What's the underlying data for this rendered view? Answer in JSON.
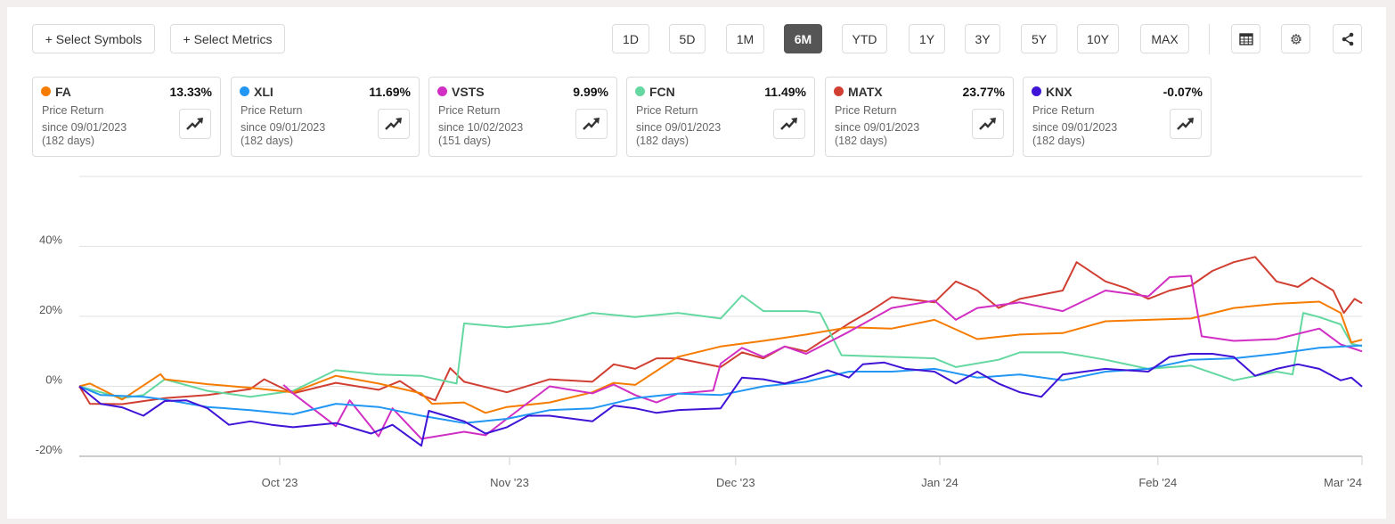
{
  "toolbar": {
    "select_symbols": "+ Select Symbols",
    "select_metrics": "+ Select Metrics",
    "ranges": [
      "1D",
      "5D",
      "1M",
      "6M",
      "YTD",
      "1Y",
      "3Y",
      "5Y",
      "10Y",
      "MAX"
    ],
    "active_range": "6M",
    "icons": [
      "table-icon",
      "gear-icon",
      "share-icon"
    ]
  },
  "cards": [
    {
      "symbol": "FA",
      "value": "13.33%",
      "metric": "Price Return",
      "since": "since 09/01/2023",
      "days": "(182 days)",
      "color": "#f57c00"
    },
    {
      "symbol": "XLI",
      "value": "11.69%",
      "metric": "Price Return",
      "since": "since 09/01/2023",
      "days": "(182 days)",
      "color": "#2196f3"
    },
    {
      "symbol": "VSTS",
      "value": "9.99%",
      "metric": "Price Return",
      "since": "since 10/02/2023",
      "days": "(151 days)",
      "color": "#d12fc4"
    },
    {
      "symbol": "FCN",
      "value": "11.49%",
      "metric": "Price Return",
      "since": "since 09/01/2023",
      "days": "(182 days)",
      "color": "#64d8a0"
    },
    {
      "symbol": "MATX",
      "value": "23.77%",
      "metric": "Price Return",
      "since": "since 09/01/2023",
      "days": "(182 days)",
      "color": "#d13f33"
    },
    {
      "symbol": "KNX",
      "value": "-0.07%",
      "metric": "Price Return",
      "since": "since 09/01/2023",
      "days": "(182 days)",
      "color": "#3f14d6"
    }
  ],
  "chart_data": {
    "type": "line",
    "title": "",
    "xlabel": "",
    "ylabel": "",
    "x_unit": "trading-day index from 09/01/2023",
    "xlim": [
      0,
      120
    ],
    "ylim": [
      -20,
      60
    ],
    "yticks": [
      {
        "value": -20,
        "label": "-20%"
      },
      {
        "value": 0,
        "label": "0%"
      },
      {
        "value": 20,
        "label": "20%"
      },
      {
        "value": 40,
        "label": "40%"
      }
    ],
    "xticks": [
      {
        "value": 18.75,
        "label": "Oct '23"
      },
      {
        "value": 40.25,
        "label": "Nov '23"
      },
      {
        "value": 61.4,
        "label": "Dec '23"
      },
      {
        "value": 80.5,
        "label": "Jan '24"
      },
      {
        "value": 100.9,
        "label": "Feb '24"
      },
      {
        "value": 120,
        "label": "Mar '24"
      }
    ],
    "grid": true,
    "series": [
      {
        "name": "MATX",
        "color": "#d13f33",
        "points": [
          [
            0,
            0
          ],
          [
            1,
            -5
          ],
          [
            4,
            -5.1
          ],
          [
            8,
            -3.4
          ],
          [
            12,
            -2.5
          ],
          [
            16,
            -0.8
          ],
          [
            17.3,
            2
          ],
          [
            20,
            -2
          ],
          [
            24,
            1
          ],
          [
            28,
            -1
          ],
          [
            30,
            1.5
          ],
          [
            32,
            -2.5
          ],
          [
            33.3,
            -4
          ],
          [
            34.7,
            5.2
          ],
          [
            36,
            1.3
          ],
          [
            40,
            -1.7
          ],
          [
            44,
            2
          ],
          [
            48,
            1.3
          ],
          [
            50,
            6.3
          ],
          [
            52,
            5
          ],
          [
            54,
            8
          ],
          [
            56,
            8
          ],
          [
            60,
            5.5
          ],
          [
            62,
            9.7
          ],
          [
            64,
            8
          ],
          [
            66,
            11.4
          ],
          [
            68,
            10
          ],
          [
            72,
            18
          ],
          [
            74,
            21.5
          ],
          [
            76,
            25.5
          ],
          [
            80,
            24
          ],
          [
            82,
            30
          ],
          [
            84,
            27.4
          ],
          [
            86,
            22.4
          ],
          [
            88,
            25
          ],
          [
            92,
            27.4
          ],
          [
            93.3,
            35.5
          ],
          [
            96,
            30
          ],
          [
            98,
            28
          ],
          [
            100,
            25
          ],
          [
            102,
            27.4
          ],
          [
            104,
            28.8
          ],
          [
            106,
            33
          ],
          [
            108,
            35.5
          ],
          [
            110,
            37
          ],
          [
            112,
            30
          ],
          [
            114,
            28.4
          ],
          [
            115.3,
            31
          ],
          [
            117.3,
            27.4
          ],
          [
            118.3,
            21
          ],
          [
            119.3,
            25
          ],
          [
            120,
            23.77
          ]
        ]
      },
      {
        "name": "FCN",
        "color": "#64d8a0",
        "points": [
          [
            0,
            0
          ],
          [
            4,
            -3.4
          ],
          [
            6,
            -2.5
          ],
          [
            8,
            2
          ],
          [
            12,
            -1.3
          ],
          [
            16,
            -3
          ],
          [
            20,
            -1.3
          ],
          [
            24,
            4.6
          ],
          [
            28,
            3.4
          ],
          [
            32,
            3
          ],
          [
            35.3,
            0.8
          ],
          [
            36,
            18
          ],
          [
            40,
            16.9
          ],
          [
            44,
            18
          ],
          [
            48,
            21
          ],
          [
            52,
            19.8
          ],
          [
            56,
            21
          ],
          [
            60,
            19.4
          ],
          [
            62,
            26
          ],
          [
            64,
            21.5
          ],
          [
            68,
            21.5
          ],
          [
            69.3,
            21
          ],
          [
            71.3,
            8.9
          ],
          [
            76,
            8.4
          ],
          [
            80,
            8
          ],
          [
            82,
            5.5
          ],
          [
            86,
            7.6
          ],
          [
            88,
            9.7
          ],
          [
            92,
            9.7
          ],
          [
            96,
            7.6
          ],
          [
            100,
            5
          ],
          [
            104,
            5.9
          ],
          [
            108,
            1.7
          ],
          [
            112,
            4.2
          ],
          [
            113.5,
            3.4
          ],
          [
            114.5,
            21
          ],
          [
            116,
            19.8
          ],
          [
            118,
            17.7
          ],
          [
            119,
            12.2
          ],
          [
            120,
            11.49
          ]
        ]
      },
      {
        "name": "FA",
        "color": "#f57c00",
        "points": [
          [
            0,
            0
          ],
          [
            1,
            0.8
          ],
          [
            4,
            -3.8
          ],
          [
            7.6,
            3.5
          ],
          [
            8,
            2
          ],
          [
            12,
            0.6
          ],
          [
            16,
            -0.4
          ],
          [
            20,
            -1.7
          ],
          [
            24,
            3
          ],
          [
            28,
            0.8
          ],
          [
            32,
            -2
          ],
          [
            33,
            -5
          ],
          [
            36,
            -4.6
          ],
          [
            38,
            -7.6
          ],
          [
            40,
            -5.9
          ],
          [
            44,
            -4.6
          ],
          [
            48,
            -1.7
          ],
          [
            50,
            1
          ],
          [
            52,
            0.4
          ],
          [
            56,
            8.4
          ],
          [
            60,
            11.4
          ],
          [
            64,
            13
          ],
          [
            68,
            14.8
          ],
          [
            72,
            16.9
          ],
          [
            76,
            16.5
          ],
          [
            80,
            19
          ],
          [
            84,
            13.5
          ],
          [
            88,
            14.8
          ],
          [
            92,
            15.2
          ],
          [
            96,
            18.6
          ],
          [
            100,
            19
          ],
          [
            104,
            19.4
          ],
          [
            108,
            22.4
          ],
          [
            112,
            23.6
          ],
          [
            116,
            24.2
          ],
          [
            118,
            21
          ],
          [
            119,
            12.5
          ],
          [
            120,
            13.33
          ]
        ]
      },
      {
        "name": "VSTS",
        "color": "#d12fc4",
        "points": [
          [
            19.1,
            0.4
          ],
          [
            20,
            -2
          ],
          [
            24,
            -11.4
          ],
          [
            25.3,
            -4
          ],
          [
            28,
            -14.3
          ],
          [
            29.3,
            -6.3
          ],
          [
            32,
            -15
          ],
          [
            36,
            -13
          ],
          [
            38,
            -14
          ],
          [
            40,
            -9.3
          ],
          [
            44,
            0
          ],
          [
            48,
            -2
          ],
          [
            50,
            0.5
          ],
          [
            52,
            -2.5
          ],
          [
            54,
            -4.6
          ],
          [
            56,
            -2.1
          ],
          [
            59.3,
            -1.2
          ],
          [
            60,
            6.5
          ],
          [
            62,
            11
          ],
          [
            64,
            8.4
          ],
          [
            66,
            11.4
          ],
          [
            68,
            9.3
          ],
          [
            72,
            15.6
          ],
          [
            76,
            22.4
          ],
          [
            80,
            24.5
          ],
          [
            82,
            19
          ],
          [
            84,
            22.4
          ],
          [
            88,
            24
          ],
          [
            92,
            21.5
          ],
          [
            96,
            27.4
          ],
          [
            100,
            25.7
          ],
          [
            102,
            31.2
          ],
          [
            104,
            31.6
          ],
          [
            105,
            14.3
          ],
          [
            108,
            13
          ],
          [
            112,
            13.5
          ],
          [
            116,
            16.5
          ],
          [
            118,
            12
          ],
          [
            120,
            9.99
          ]
        ]
      },
      {
        "name": "XLI",
        "color": "#2196f3",
        "points": [
          [
            0,
            0
          ],
          [
            2,
            -2.5
          ],
          [
            6,
            -3
          ],
          [
            8,
            -3.8
          ],
          [
            12,
            -5.9
          ],
          [
            16,
            -6.8
          ],
          [
            20,
            -8
          ],
          [
            24,
            -5
          ],
          [
            28,
            -5.9
          ],
          [
            32,
            -8.4
          ],
          [
            36,
            -10.5
          ],
          [
            40,
            -9.3
          ],
          [
            44,
            -6.8
          ],
          [
            48,
            -6.3
          ],
          [
            52,
            -3.4
          ],
          [
            56,
            -2.1
          ],
          [
            60,
            -2.5
          ],
          [
            64,
            0
          ],
          [
            68,
            1.3
          ],
          [
            72,
            4.2
          ],
          [
            76,
            4.2
          ],
          [
            80,
            5
          ],
          [
            84,
            2.5
          ],
          [
            88,
            3.4
          ],
          [
            92,
            1.7
          ],
          [
            96,
            4.2
          ],
          [
            100,
            5
          ],
          [
            104,
            7.6
          ],
          [
            108,
            8
          ],
          [
            112,
            9.3
          ],
          [
            116,
            11
          ],
          [
            120,
            11.69
          ]
        ]
      },
      {
        "name": "KNX",
        "color": "#3f14d6",
        "points": [
          [
            0,
            0
          ],
          [
            2,
            -5
          ],
          [
            4,
            -6
          ],
          [
            6,
            -8.4
          ],
          [
            8,
            -4.2
          ],
          [
            10,
            -4
          ],
          [
            12,
            -6.3
          ],
          [
            14,
            -11
          ],
          [
            16,
            -10
          ],
          [
            18,
            -11
          ],
          [
            20,
            -11.7
          ],
          [
            24,
            -10.5
          ],
          [
            27.3,
            -13.5
          ],
          [
            29.3,
            -11
          ],
          [
            32,
            -17
          ],
          [
            32.7,
            -7
          ],
          [
            36,
            -10
          ],
          [
            38,
            -13.5
          ],
          [
            40,
            -11.7
          ],
          [
            42,
            -8.4
          ],
          [
            44,
            -8.4
          ],
          [
            48,
            -10
          ],
          [
            50,
            -5.5
          ],
          [
            52,
            -6.3
          ],
          [
            54,
            -7.6
          ],
          [
            56,
            -6.8
          ],
          [
            60,
            -6.3
          ],
          [
            62,
            2.5
          ],
          [
            64,
            2
          ],
          [
            66,
            0.8
          ],
          [
            68,
            2.5
          ],
          [
            70,
            4.6
          ],
          [
            72,
            2.5
          ],
          [
            73.3,
            6.3
          ],
          [
            75.3,
            6.8
          ],
          [
            77.3,
            5
          ],
          [
            80,
            4.2
          ],
          [
            82,
            0.8
          ],
          [
            84,
            4.2
          ],
          [
            86,
            0.8
          ],
          [
            88,
            -1.7
          ],
          [
            90,
            -3
          ],
          [
            92,
            3.4
          ],
          [
            96,
            5
          ],
          [
            100,
            4.2
          ],
          [
            102,
            8.4
          ],
          [
            104,
            9.3
          ],
          [
            106,
            9.3
          ],
          [
            108,
            8.4
          ],
          [
            110,
            3
          ],
          [
            112,
            5
          ],
          [
            114,
            6.3
          ],
          [
            116,
            5
          ],
          [
            118,
            1.7
          ],
          [
            119,
            2.5
          ],
          [
            120,
            -0.07
          ]
        ]
      }
    ]
  }
}
